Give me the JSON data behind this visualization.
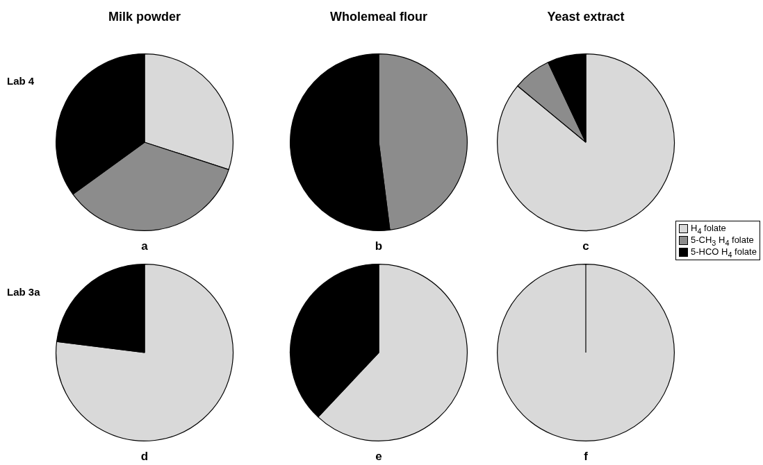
{
  "chart_data": [
    {
      "type": "pie",
      "title": "a",
      "annotations": [
        "Milk powder",
        "Lab 4"
      ],
      "values": [
        30,
        35,
        35
      ],
      "colors": [
        "#d9d9d9",
        "#8c8c8c",
        "#000000"
      ]
    },
    {
      "type": "pie",
      "title": "b",
      "annotations": [
        "Wholemeal flour"
      ],
      "values": [
        0,
        48,
        52
      ],
      "colors": [
        "#d9d9d9",
        "#8c8c8c",
        "#000000"
      ]
    },
    {
      "type": "pie",
      "title": "c",
      "annotations": [
        "Yeast extract"
      ],
      "legend": "right",
      "categories": [
        "H$_{4}$ folate",
        "5-CH$_{3}$ H$_{4}$ folate",
        "5-HCO H$_{4}$ folate"
      ],
      "values": [
        86,
        7,
        7
      ],
      "colors": [
        "#d9d9d9",
        "#8c8c8c",
        "#000000"
      ]
    },
    {
      "type": "pie",
      "title": "d",
      "annotations": [
        "Lab 3a"
      ],
      "values": [
        77,
        0,
        23
      ],
      "colors": [
        "#d9d9d9",
        "#8c8c8c",
        "#000000"
      ]
    },
    {
      "type": "pie",
      "title": "e",
      "values": [
        62,
        0,
        38
      ],
      "colors": [
        "#d9d9d9",
        "#8c8c8c",
        "#000000"
      ]
    },
    {
      "type": "pie",
      "title": "f",
      "values": [
        100,
        0,
        0
      ],
      "colors": [
        "#d9d9d9",
        "#8c8c8c",
        "#000000"
      ]
    }
  ]
}
